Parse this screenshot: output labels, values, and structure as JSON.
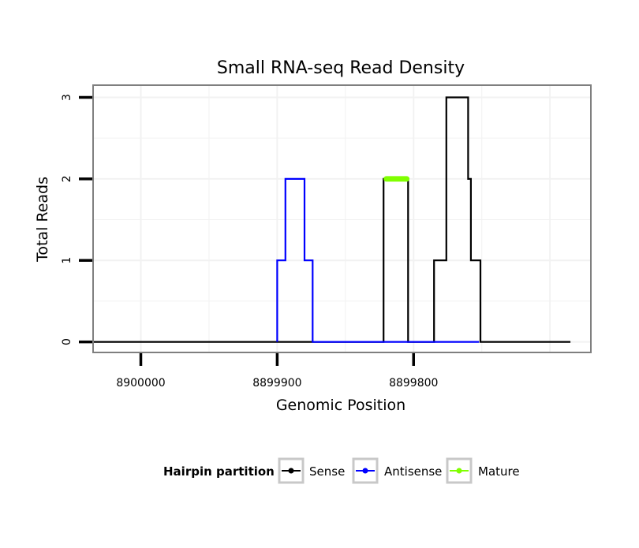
{
  "chart_data": {
    "type": "line",
    "title": "Small RNA-seq Read Density",
    "xlabel": "Genomic Position",
    "ylabel": "Total Reads",
    "x_reversed": true,
    "xlim": [
      8900035,
      8899670
    ],
    "ylim": [
      -0.13,
      3.15
    ],
    "x_ticks": [
      8900000,
      8899900,
      8899800
    ],
    "x_tick_labels": [
      "8900000",
      "8899900",
      "8899800"
    ],
    "y_ticks": [
      0,
      1,
      2,
      3
    ],
    "y_tick_labels": [
      "0",
      "1",
      "2",
      "3"
    ],
    "grid": true,
    "legend": {
      "title": "Hairpin partition",
      "position": "bottom",
      "entries": [
        "Sense",
        "Antisense",
        "Mature"
      ]
    },
    "series": [
      {
        "name": "Sense",
        "color": "#000000",
        "points": [
          [
            8900035,
            0
          ],
          [
            8899822,
            0
          ],
          [
            8899822,
            2
          ],
          [
            8899804,
            2
          ],
          [
            8899804,
            0
          ],
          [
            8899785,
            0
          ],
          [
            8899785,
            1
          ],
          [
            8899776,
            1
          ],
          [
            8899776,
            3
          ],
          [
            8899760,
            3
          ],
          [
            8899760,
            2
          ],
          [
            8899758,
            2
          ],
          [
            8899758,
            1
          ],
          [
            8899751,
            1
          ],
          [
            8899751,
            0
          ],
          [
            8899685,
            0
          ]
        ]
      },
      {
        "name": "Antisense",
        "color": "#0000ff",
        "points": [
          [
            8899900,
            0
          ],
          [
            8899900,
            1
          ],
          [
            8899894,
            1
          ],
          [
            8899894,
            2
          ],
          [
            8899880,
            2
          ],
          [
            8899880,
            1
          ],
          [
            8899874,
            1
          ],
          [
            8899874,
            0
          ],
          [
            8899752,
            0
          ]
        ]
      },
      {
        "name": "Mature",
        "color": "#80ff00",
        "points": [
          [
            8899820,
            2
          ],
          [
            8899805,
            2
          ]
        ]
      }
    ]
  }
}
